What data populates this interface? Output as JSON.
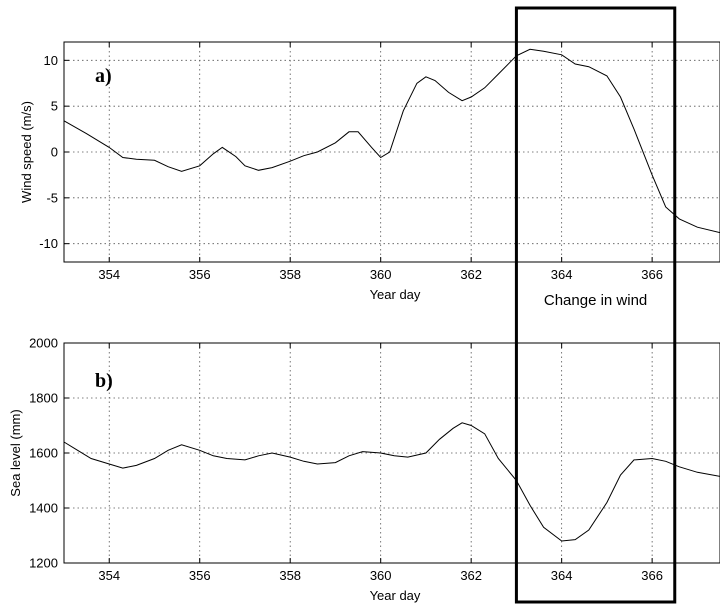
{
  "chart_data": [
    {
      "type": "line",
      "panel_label": "a)",
      "xlabel": "Year day",
      "ylabel": "Wind speed (m/s)",
      "xlim": [
        353,
        367.5
      ],
      "ylim": [
        -12,
        12
      ],
      "xticks": [
        354,
        356,
        358,
        360,
        362,
        364,
        366
      ],
      "yticks": [
        -10,
        -5,
        0,
        5,
        10
      ],
      "grid": true,
      "x": [
        353.0,
        353.5,
        354.0,
        354.3,
        354.6,
        355.0,
        355.3,
        355.6,
        356.0,
        356.3,
        356.5,
        356.8,
        357.0,
        357.3,
        357.6,
        358.0,
        358.3,
        358.6,
        359.0,
        359.3,
        359.5,
        359.8,
        360.0,
        360.2,
        360.5,
        360.8,
        361.0,
        361.2,
        361.5,
        361.8,
        362.0,
        362.3,
        362.6,
        363.0,
        363.3,
        363.6,
        364.0,
        364.3,
        364.6,
        365.0,
        365.3,
        365.6,
        366.0,
        366.3,
        366.6,
        367.0,
        367.5
      ],
      "values": [
        3.4,
        2.0,
        0.5,
        -0.6,
        -0.8,
        -0.9,
        -1.6,
        -2.1,
        -1.5,
        -0.2,
        0.5,
        -0.5,
        -1.5,
        -2.0,
        -1.7,
        -1.0,
        -0.4,
        0.0,
        1.0,
        2.2,
        2.2,
        0.5,
        -0.6,
        0.0,
        4.5,
        7.5,
        8.2,
        7.8,
        6.5,
        5.6,
        6.0,
        7.0,
        8.5,
        10.5,
        11.2,
        11.0,
        10.6,
        9.6,
        9.3,
        8.3,
        6.0,
        2.5,
        -2.5,
        -6.0,
        -7.3,
        -8.2,
        -8.8
      ]
    },
    {
      "type": "line",
      "panel_label": "b)",
      "xlabel": "Year day",
      "ylabel": "Sea level (mm)",
      "xlim": [
        353,
        367.5
      ],
      "ylim": [
        1200,
        2000
      ],
      "xticks": [
        354,
        356,
        358,
        360,
        362,
        364,
        366
      ],
      "yticks": [
        1200,
        1400,
        1600,
        1800,
        2000
      ],
      "grid": true,
      "x": [
        353.0,
        353.3,
        353.6,
        354.0,
        354.3,
        354.6,
        355.0,
        355.3,
        355.6,
        356.0,
        356.3,
        356.6,
        357.0,
        357.3,
        357.6,
        358.0,
        358.3,
        358.6,
        359.0,
        359.3,
        359.6,
        360.0,
        360.3,
        360.6,
        361.0,
        361.3,
        361.6,
        361.8,
        362.0,
        362.3,
        362.6,
        363.0,
        363.3,
        363.6,
        364.0,
        364.3,
        364.6,
        365.0,
        365.3,
        365.6,
        366.0,
        366.3,
        366.6,
        367.0,
        367.5
      ],
      "values": [
        1640,
        1610,
        1580,
        1560,
        1545,
        1555,
        1580,
        1610,
        1630,
        1610,
        1590,
        1580,
        1575,
        1590,
        1600,
        1585,
        1570,
        1560,
        1565,
        1590,
        1605,
        1600,
        1590,
        1585,
        1600,
        1650,
        1690,
        1710,
        1700,
        1670,
        1580,
        1500,
        1410,
        1330,
        1280,
        1285,
        1320,
        1420,
        1520,
        1575,
        1580,
        1570,
        1550,
        1530,
        1515
      ]
    }
  ],
  "annotation": {
    "text": "Change in wind",
    "x_range": [
      363,
      366.5
    ]
  }
}
